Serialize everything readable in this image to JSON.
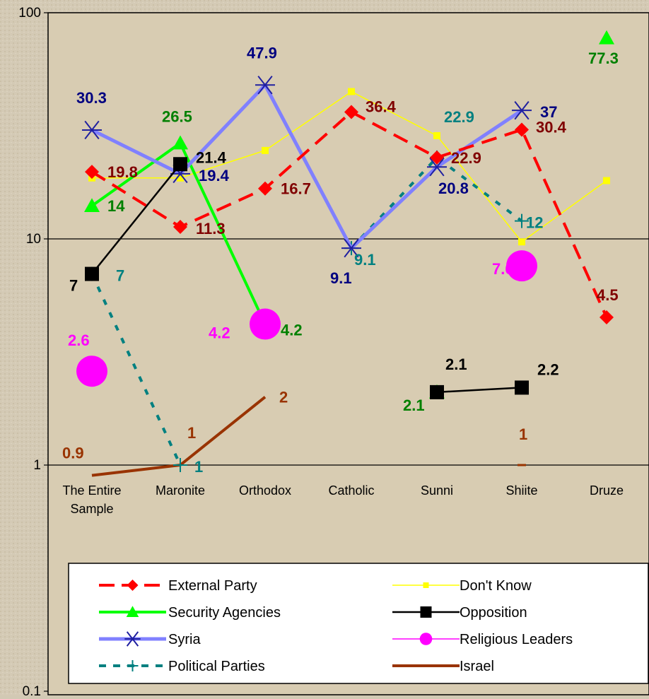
{
  "chart_data": {
    "type": "line",
    "yscale": "log",
    "ylim": [
      0.1,
      100
    ],
    "ytick_labels": [
      "100",
      "10",
      "1",
      "0.1"
    ],
    "ytick_values": [
      100,
      10,
      1,
      0.1
    ],
    "categories": [
      "The Entire Sample",
      "Maronite",
      "Orthodox",
      "Catholic",
      "Sunni",
      "Shiite",
      "Druze"
    ],
    "grid": "horizontal at 1 and 10",
    "legend_position": "bottom",
    "series": [
      {
        "name": "External Party",
        "color": "#ff0000",
        "label_color": "#800000",
        "marker": "diamond",
        "dash": "dashed",
        "values": [
          19.8,
          11.3,
          16.7,
          36.4,
          22.9,
          30.4,
          4.5
        ],
        "labels": [
          "19.8",
          "11.3",
          "16.7",
          "36.4",
          "22.9",
          "30.4",
          "4.5"
        ]
      },
      {
        "name": "Don't Know",
        "color": "#ffff00",
        "label_color": null,
        "marker": "square-small",
        "dash": "solid-thin",
        "values": [
          18.6,
          18.6,
          24.6,
          44.8,
          28.6,
          9.7,
          18.1
        ],
        "labels": [
          null,
          null,
          null,
          null,
          null,
          null,
          null
        ]
      },
      {
        "name": "Security Agencies",
        "color": "#00ff00",
        "label_color": "#008000",
        "marker": "triangle",
        "dash": "solid-thick",
        "values": [
          14,
          26.5,
          4.2,
          null,
          2.1,
          null,
          77.3
        ],
        "labels": [
          "14",
          "26.5",
          "4.2",
          null,
          "2.1",
          null,
          "77.3"
        ]
      },
      {
        "name": "Opposition",
        "color": "#000000",
        "label_color": "#000000",
        "marker": "square",
        "dash": "solid",
        "values": [
          7,
          21.4,
          null,
          null,
          2.1,
          2.2,
          null
        ],
        "labels": [
          "7",
          "21.4",
          null,
          null,
          "2.1",
          "2.2",
          null
        ]
      },
      {
        "name": "Syria",
        "color": "#8080ff",
        "label_color": "#000080",
        "marker": "asterisk",
        "dash": "solid-thick",
        "values": [
          30.3,
          19.4,
          47.9,
          9.1,
          20.8,
          37,
          null
        ],
        "labels": [
          "30.3",
          "19.4",
          "47.9",
          "9.1",
          "20.8",
          "37",
          null
        ]
      },
      {
        "name": "Religious Leaders",
        "color": "#ff00ff",
        "label_color": "#ff00ff",
        "marker": "circle-large",
        "dash": "solid-thin",
        "values": [
          2.6,
          null,
          4.2,
          null,
          null,
          7.6,
          null
        ],
        "labels": [
          "2.6",
          null,
          "4.2",
          null,
          null,
          "7.6",
          null
        ]
      },
      {
        "name": "Political Parties",
        "color": "#008080",
        "label_color": "#008080",
        "marker": "plus",
        "dash": "dashed",
        "values": [
          7,
          1,
          null,
          9.1,
          22.9,
          12,
          null
        ],
        "labels": [
          "7",
          "1",
          null,
          "9.1",
          "22.9",
          "12",
          null
        ]
      },
      {
        "name": "Israel",
        "color": "#993300",
        "label_color": "#993300",
        "marker": "none",
        "dash": "solid-thick",
        "values": [
          0.9,
          1,
          2,
          null,
          null,
          1,
          null
        ],
        "labels": [
          "0.9",
          "1",
          "2",
          null,
          null,
          "1",
          null
        ]
      }
    ]
  }
}
